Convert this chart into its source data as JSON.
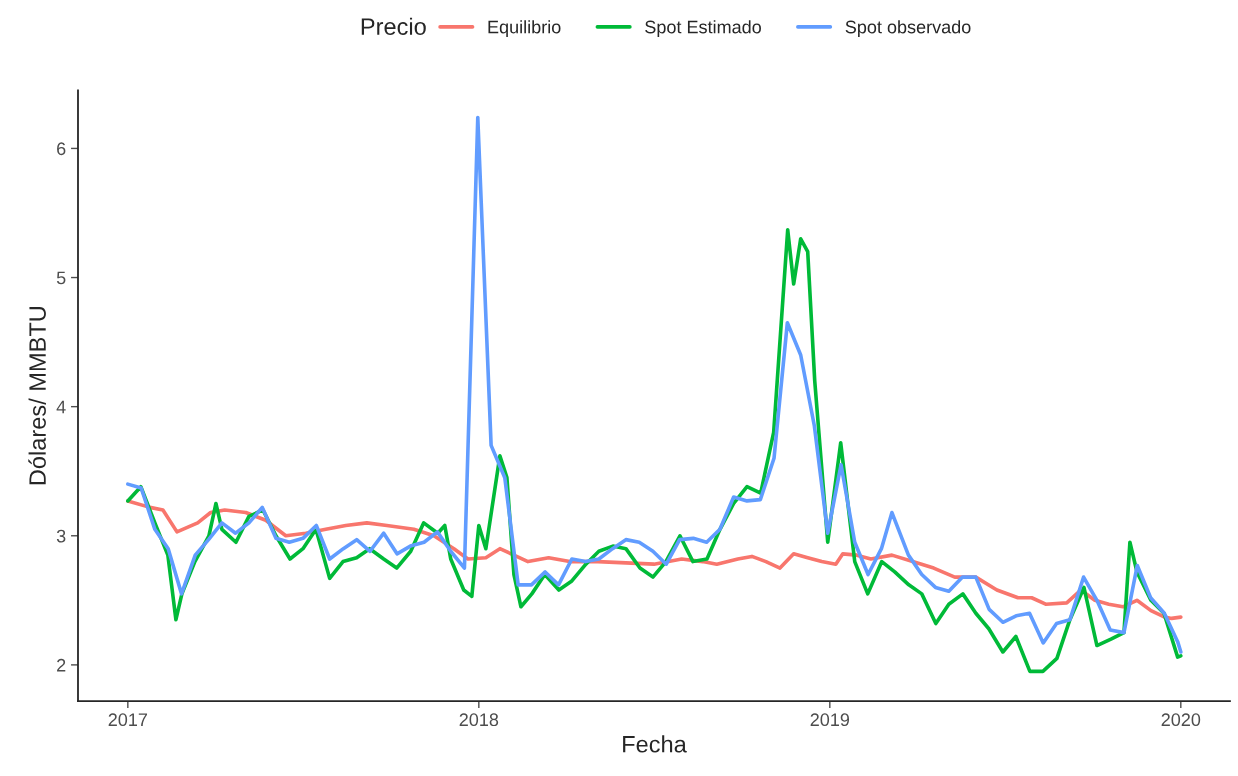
{
  "chart_data": {
    "type": "line",
    "xlabel": "Fecha",
    "ylabel": "Dólares/ MMBTU",
    "legend_title": "Precio",
    "legend": "top",
    "xlim": [
      2016.858,
      2020.14
    ],
    "xticks": [
      2017,
      2018,
      2019,
      2020
    ],
    "ylim": [
      1.72,
      6.45
    ],
    "yticks": [
      2,
      3,
      4,
      5,
      6
    ],
    "grid": false,
    "series": [
      {
        "name": "Equilibrio",
        "color": "#f8766d",
        "x": [
          2017.0,
          2017.063,
          2017.1,
          2017.14,
          2017.199,
          2017.236,
          2017.276,
          2017.336,
          2017.393,
          2017.45,
          2017.507,
          2017.564,
          2017.621,
          2017.681,
          2017.738,
          2017.815,
          2017.872,
          2017.929,
          2017.969,
          2018.02,
          2018.06,
          2018.1,
          2018.14,
          2018.199,
          2018.259,
          2018.339,
          2018.419,
          2018.499,
          2018.578,
          2018.638,
          2018.678,
          2018.738,
          2018.778,
          2018.818,
          2018.858,
          2018.897,
          2018.937,
          2018.977,
          2019.017,
          2019.037,
          2019.077,
          2019.117,
          2019.177,
          2019.236,
          2019.296,
          2019.356,
          2019.416,
          2019.476,
          2019.536,
          2019.575,
          2019.615,
          2019.675,
          2019.715,
          2019.755,
          2019.795,
          2019.835,
          2019.875,
          2019.915,
          2019.954,
          2019.974,
          2020.0
        ],
        "values": [
          3.27,
          3.22,
          3.2,
          3.03,
          3.1,
          3.18,
          3.2,
          3.18,
          3.12,
          3.0,
          3.02,
          3.05,
          3.08,
          3.1,
          3.08,
          3.05,
          3.0,
          2.9,
          2.82,
          2.83,
          2.9,
          2.85,
          2.8,
          2.83,
          2.8,
          2.8,
          2.79,
          2.78,
          2.82,
          2.8,
          2.78,
          2.82,
          2.84,
          2.8,
          2.75,
          2.86,
          2.83,
          2.8,
          2.78,
          2.86,
          2.85,
          2.82,
          2.85,
          2.8,
          2.75,
          2.68,
          2.68,
          2.58,
          2.52,
          2.52,
          2.47,
          2.48,
          2.58,
          2.5,
          2.47,
          2.45,
          2.5,
          2.42,
          2.37,
          2.36,
          2.37
        ]
      },
      {
        "name": "Spot Estimado",
        "color": "#00ba38",
        "x": [
          2017.0,
          2017.037,
          2017.077,
          2017.114,
          2017.137,
          2017.154,
          2017.191,
          2017.231,
          2017.251,
          2017.268,
          2017.308,
          2017.345,
          2017.385,
          2017.422,
          2017.462,
          2017.499,
          2017.536,
          2017.575,
          2017.613,
          2017.652,
          2017.689,
          2017.729,
          2017.766,
          2017.806,
          2017.843,
          2017.883,
          2017.903,
          2017.92,
          2017.957,
          2017.98,
          2018.0,
          2018.02,
          2018.06,
          2018.08,
          2018.1,
          2018.12,
          2018.151,
          2018.188,
          2018.228,
          2018.265,
          2018.305,
          2018.342,
          2018.382,
          2018.419,
          2018.459,
          2018.496,
          2018.533,
          2018.573,
          2018.61,
          2018.65,
          2018.687,
          2018.726,
          2018.764,
          2018.803,
          2018.84,
          2018.88,
          2018.897,
          2018.917,
          2018.937,
          2018.957,
          2018.994,
          2019.031,
          2019.071,
          2019.108,
          2019.148,
          2019.185,
          2019.225,
          2019.262,
          2019.302,
          2019.339,
          2019.379,
          2019.416,
          2019.453,
          2019.493,
          2019.53,
          2019.57,
          2019.607,
          2019.647,
          2019.684,
          2019.724,
          2019.761,
          2019.801,
          2019.838,
          2019.855,
          2019.875,
          2019.915,
          2019.952,
          2019.991,
          2020.0
        ],
        "values": [
          3.27,
          3.38,
          3.1,
          2.85,
          2.35,
          2.55,
          2.8,
          3.0,
          3.25,
          3.05,
          2.95,
          3.15,
          3.2,
          3.0,
          2.82,
          2.9,
          3.05,
          2.67,
          2.8,
          2.83,
          2.9,
          2.82,
          2.75,
          2.88,
          3.1,
          3.02,
          3.08,
          2.82,
          2.58,
          2.53,
          3.08,
          2.9,
          3.62,
          3.45,
          2.7,
          2.45,
          2.55,
          2.7,
          2.58,
          2.65,
          2.78,
          2.88,
          2.92,
          2.9,
          2.75,
          2.68,
          2.8,
          3.0,
          2.8,
          2.82,
          3.05,
          3.25,
          3.38,
          3.33,
          3.8,
          5.37,
          4.95,
          5.3,
          5.2,
          4.2,
          2.95,
          3.72,
          2.8,
          2.55,
          2.8,
          2.72,
          2.62,
          2.55,
          2.32,
          2.47,
          2.55,
          2.4,
          2.28,
          2.1,
          2.22,
          1.95,
          1.95,
          2.05,
          2.35,
          2.6,
          2.15,
          2.2,
          2.25,
          2.95,
          2.72,
          2.5,
          2.4,
          2.06,
          2.07
        ]
      },
      {
        "name": "Spot observado",
        "color": "#619cff",
        "x": [
          2017.0,
          2017.038,
          2017.077,
          2017.115,
          2017.153,
          2017.192,
          2017.23,
          2017.268,
          2017.307,
          2017.345,
          2017.383,
          2017.422,
          2017.46,
          2017.499,
          2017.537,
          2017.575,
          2017.614,
          2017.652,
          2017.69,
          2017.729,
          2017.767,
          2017.805,
          2017.844,
          2017.882,
          2017.92,
          2017.959,
          2017.997,
          2018.035,
          2018.074,
          2018.112,
          2018.15,
          2018.189,
          2018.227,
          2018.265,
          2018.304,
          2018.342,
          2018.381,
          2018.419,
          2018.457,
          2018.496,
          2018.534,
          2018.572,
          2018.611,
          2018.649,
          2018.687,
          2018.726,
          2018.764,
          2018.802,
          2018.841,
          2018.879,
          2018.917,
          2018.956,
          2018.994,
          2019.032,
          2019.071,
          2019.109,
          2019.147,
          2019.177,
          2019.224,
          2019.262,
          2019.301,
          2019.339,
          2019.378,
          2019.416,
          2019.454,
          2019.493,
          2019.531,
          2019.569,
          2019.608,
          2019.646,
          2019.684,
          2019.723,
          2019.761,
          2019.799,
          2019.838,
          2019.876,
          2019.914,
          2019.953,
          2019.991,
          2020.0
        ],
        "values": [
          3.4,
          3.37,
          3.05,
          2.9,
          2.55,
          2.85,
          2.97,
          3.1,
          3.02,
          3.1,
          3.22,
          2.98,
          2.95,
          2.98,
          3.08,
          2.82,
          2.9,
          2.97,
          2.88,
          3.02,
          2.86,
          2.92,
          2.95,
          3.03,
          2.88,
          2.75,
          6.24,
          3.7,
          3.45,
          2.62,
          2.62,
          2.72,
          2.62,
          2.82,
          2.8,
          2.82,
          2.9,
          2.97,
          2.95,
          2.88,
          2.78,
          2.97,
          2.98,
          2.95,
          3.05,
          3.3,
          3.27,
          3.28,
          3.6,
          4.65,
          4.4,
          3.85,
          3.02,
          3.55,
          2.95,
          2.7,
          2.9,
          3.18,
          2.85,
          2.7,
          2.6,
          2.57,
          2.68,
          2.68,
          2.43,
          2.33,
          2.38,
          2.4,
          2.17,
          2.32,
          2.35,
          2.68,
          2.5,
          2.27,
          2.25,
          2.77,
          2.52,
          2.4,
          2.18,
          2.1
        ]
      }
    ]
  }
}
